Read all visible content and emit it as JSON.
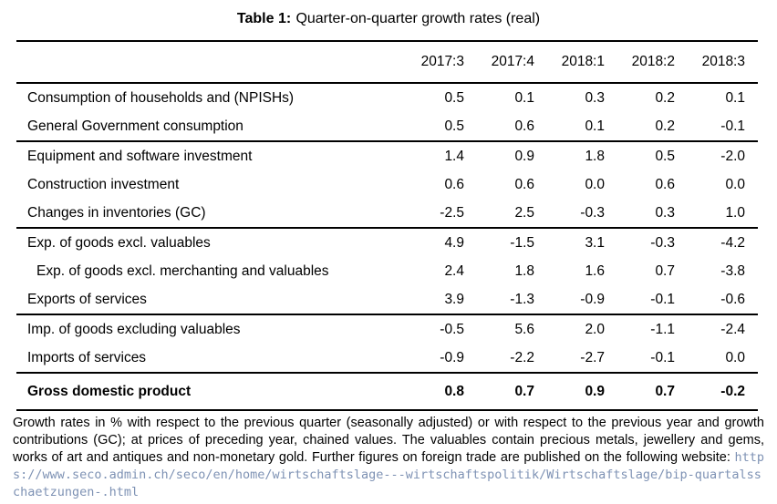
{
  "title": {
    "label": "Table 1:",
    "text": "Quarter-on-quarter growth rates (real)"
  },
  "table": {
    "columns": [
      "2017:3",
      "2017:4",
      "2018:1",
      "2018:2",
      "2018:3"
    ],
    "sections": [
      {
        "rows": [
          {
            "label": "Consumption of households and (NPISHs)",
            "values": [
              "0.5",
              "0.1",
              "0.3",
              "0.2",
              "0.1"
            ]
          },
          {
            "label": "General Government consumption",
            "values": [
              "0.5",
              "0.6",
              "0.1",
              "0.2",
              "-0.1"
            ]
          }
        ]
      },
      {
        "rows": [
          {
            "label": "Equipment and software investment",
            "values": [
              "1.4",
              "0.9",
              "1.8",
              "0.5",
              "-2.0"
            ]
          },
          {
            "label": "Construction investment",
            "values": [
              "0.6",
              "0.6",
              "0.0",
              "0.6",
              "0.0"
            ]
          },
          {
            "label": "Changes in inventories (GC)",
            "values": [
              "-2.5",
              "2.5",
              "-0.3",
              "0.3",
              "1.0"
            ]
          }
        ]
      },
      {
        "rows": [
          {
            "label": "Exp. of goods excl. valuables",
            "values": [
              "4.9",
              "-1.5",
              "3.1",
              "-0.3",
              "-4.2"
            ]
          },
          {
            "label": "Exp. of goods excl. merchanting and valuables",
            "indent": true,
            "values": [
              "2.4",
              "1.8",
              "1.6",
              "0.7",
              "-3.8"
            ]
          },
          {
            "label": "Exports of services",
            "values": [
              "3.9",
              "-1.3",
              "-0.9",
              "-0.1",
              "-0.6"
            ]
          }
        ]
      },
      {
        "rows": [
          {
            "label": "Imp. of goods excluding valuables",
            "values": [
              "-0.5",
              "5.6",
              "2.0",
              "-1.1",
              "-2.4"
            ]
          },
          {
            "label": "Imports of services",
            "values": [
              "-0.9",
              "-2.2",
              "-2.7",
              "-0.1",
              "0.0"
            ]
          }
        ]
      },
      {
        "rows": [
          {
            "label": "Gross domestic product",
            "bold": true,
            "values": [
              "0.8",
              "0.7",
              "0.9",
              "0.7",
              "-0.2"
            ]
          }
        ]
      }
    ]
  },
  "footnote": {
    "text": "Growth rates in % with respect to the previous quarter (seasonally adjusted) or with respect to the previous year and growth contributions (GC); at prices of preceding year, chained values.  The valuables contain precious metals, jewellery and gems, works of art and antiques and non-monetary gold.  Further figures on foreign trade are published on the following website:",
    "url": "https://www.seco.admin.ch/seco/en/home/wirtschaftslage---wirtschaftspolitik/Wirtschaftslage/bip-quartalsschaetzungen-.html",
    "url_color": "#7e92b4"
  },
  "colors": {
    "text": "#000000",
    "rule": "#000000",
    "background": "#ffffff"
  }
}
